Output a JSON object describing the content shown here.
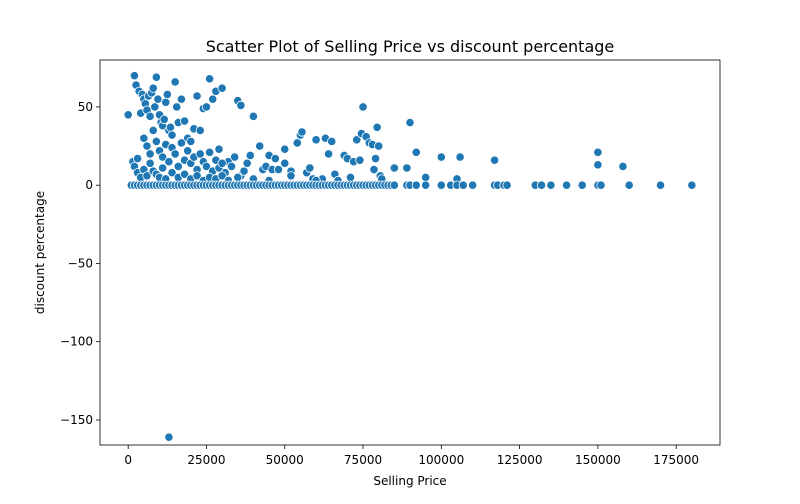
{
  "chart_data": {
    "type": "scatter",
    "title": "Scatter Plot of Selling Price vs discount percentage",
    "xlabel": "Selling Price",
    "ylabel": "discount percentage",
    "xlim": [
      -9000,
      189000
    ],
    "ylim": [
      -166,
      80
    ],
    "x_ticks": [
      0,
      25000,
      50000,
      75000,
      100000,
      125000,
      150000,
      175000
    ],
    "x_tick_labels": [
      "0",
      "25000",
      "50000",
      "75000",
      "100000",
      "125000",
      "150000",
      "175000"
    ],
    "y_ticks": [
      -150,
      -100,
      -50,
      0,
      50
    ],
    "y_tick_labels": [
      "−150",
      "−100",
      "−50",
      "0",
      "50"
    ],
    "grid": false,
    "marker_color": "#1f77b4",
    "points": [
      [
        0,
        45
      ],
      [
        1500,
        15
      ],
      [
        2000,
        70
      ],
      [
        2500,
        64
      ],
      [
        3000,
        17
      ],
      [
        3500,
        60
      ],
      [
        4000,
        46
      ],
      [
        4500,
        58
      ],
      [
        5000,
        55
      ],
      [
        5500,
        52
      ],
      [
        6000,
        48
      ],
      [
        6500,
        57
      ],
      [
        7000,
        44
      ],
      [
        7500,
        59
      ],
      [
        8000,
        62
      ],
      [
        8500,
        50
      ],
      [
        9000,
        69
      ],
      [
        9500,
        55
      ],
      [
        10000,
        45
      ],
      [
        10500,
        40
      ],
      [
        11000,
        38
      ],
      [
        11500,
        42
      ],
      [
        12000,
        53
      ],
      [
        12500,
        58
      ],
      [
        13000,
        35
      ],
      [
        13500,
        37
      ],
      [
        14000,
        32
      ],
      [
        15000,
        66
      ],
      [
        15500,
        50
      ],
      [
        16000,
        40
      ],
      [
        17000,
        55
      ],
      [
        18000,
        41
      ],
      [
        19000,
        30
      ],
      [
        20000,
        28
      ],
      [
        21000,
        36
      ],
      [
        22000,
        57
      ],
      [
        23000,
        35
      ],
      [
        24000,
        49
      ],
      [
        25000,
        50
      ],
      [
        26000,
        68
      ],
      [
        27000,
        55
      ],
      [
        28000,
        60
      ],
      [
        29000,
        23
      ],
      [
        30000,
        62
      ],
      [
        32000,
        15
      ],
      [
        34000,
        18
      ],
      [
        35000,
        54
      ],
      [
        36000,
        51
      ],
      [
        38000,
        14
      ],
      [
        39000,
        19
      ],
      [
        40000,
        44
      ],
      [
        42000,
        25
      ],
      [
        43000,
        10
      ],
      [
        44000,
        12
      ],
      [
        45000,
        19
      ],
      [
        46000,
        10
      ],
      [
        47000,
        17
      ],
      [
        48000,
        10
      ],
      [
        50000,
        23
      ],
      [
        50000,
        14
      ],
      [
        52000,
        9
      ],
      [
        54000,
        27
      ],
      [
        55000,
        32
      ],
      [
        55500,
        34
      ],
      [
        57000,
        8
      ],
      [
        58000,
        11
      ],
      [
        59000,
        4
      ],
      [
        60000,
        29
      ],
      [
        62000,
        4
      ],
      [
        63000,
        30
      ],
      [
        64000,
        20
      ],
      [
        65000,
        28
      ],
      [
        66000,
        7
      ],
      [
        67000,
        3
      ],
      [
        69000,
        19
      ],
      [
        70000,
        17
      ],
      [
        71000,
        5
      ],
      [
        72000,
        15
      ],
      [
        73000,
        29
      ],
      [
        74000,
        16
      ],
      [
        74500,
        33
      ],
      [
        75000,
        50
      ],
      [
        76000,
        31
      ],
      [
        77000,
        27
      ],
      [
        78000,
        26
      ],
      [
        78500,
        10
      ],
      [
        79000,
        17
      ],
      [
        79500,
        37
      ],
      [
        80000,
        25
      ],
      [
        80500,
        6
      ],
      [
        81000,
        4
      ],
      [
        85000,
        11
      ],
      [
        89000,
        11
      ],
      [
        90000,
        40
      ],
      [
        92000,
        21
      ],
      [
        95000,
        5
      ],
      [
        100000,
        18
      ],
      [
        105000,
        4
      ],
      [
        106000,
        18
      ],
      [
        117000,
        16
      ],
      [
        150000,
        21
      ],
      [
        150000,
        13
      ],
      [
        158000,
        12
      ],
      [
        13000,
        -161
      ],
      [
        5000,
        30
      ],
      [
        6000,
        25
      ],
      [
        7000,
        20
      ],
      [
        8000,
        35
      ],
      [
        9000,
        28
      ],
      [
        10000,
        22
      ],
      [
        11000,
        18
      ],
      [
        12000,
        26
      ],
      [
        13000,
        15
      ],
      [
        14000,
        24
      ],
      [
        15000,
        20
      ],
      [
        16000,
        12
      ],
      [
        17000,
        27
      ],
      [
        18000,
        16
      ],
      [
        19000,
        22
      ],
      [
        20000,
        14
      ],
      [
        21000,
        18
      ],
      [
        22000,
        10
      ],
      [
        23000,
        20
      ],
      [
        24000,
        15
      ],
      [
        25000,
        12
      ],
      [
        26000,
        21
      ],
      [
        27000,
        9
      ],
      [
        28000,
        16
      ],
      [
        29000,
        11
      ],
      [
        30000,
        14
      ],
      [
        31000,
        8
      ],
      [
        33000,
        12
      ],
      [
        36000,
        6
      ],
      [
        37000,
        9
      ],
      [
        2000,
        12
      ],
      [
        3000,
        8
      ],
      [
        4000,
        5
      ],
      [
        5000,
        10
      ],
      [
        6000,
        6
      ],
      [
        7000,
        14
      ],
      [
        8000,
        9
      ],
      [
        9000,
        7
      ],
      [
        10000,
        5
      ],
      [
        11000,
        11
      ],
      [
        12000,
        4
      ],
      [
        14000,
        8
      ],
      [
        16000,
        5
      ],
      [
        18000,
        7
      ],
      [
        20000,
        4
      ],
      [
        22000,
        6
      ],
      [
        24000,
        3
      ],
      [
        26000,
        5
      ],
      [
        28000,
        4
      ],
      [
        30000,
        6
      ],
      [
        32000,
        3
      ],
      [
        35000,
        5
      ],
      [
        40000,
        4
      ],
      [
        45000,
        3
      ],
      [
        52000,
        6
      ],
      [
        60000,
        3
      ],
      [
        1000,
        0
      ],
      [
        2000,
        0
      ],
      [
        3000,
        0
      ],
      [
        4000,
        0
      ],
      [
        5000,
        0
      ],
      [
        6000,
        0
      ],
      [
        7000,
        0
      ],
      [
        8000,
        0
      ],
      [
        9000,
        0
      ],
      [
        10000,
        0
      ],
      [
        11000,
        0
      ],
      [
        12000,
        0
      ],
      [
        13000,
        0
      ],
      [
        14000,
        0
      ],
      [
        15000,
        0
      ],
      [
        16000,
        0
      ],
      [
        17000,
        0
      ],
      [
        18000,
        0
      ],
      [
        19000,
        0
      ],
      [
        20000,
        0
      ],
      [
        21000,
        0
      ],
      [
        22000,
        0
      ],
      [
        23000,
        0
      ],
      [
        24000,
        0
      ],
      [
        25000,
        0
      ],
      [
        26000,
        0
      ],
      [
        27000,
        0
      ],
      [
        28000,
        0
      ],
      [
        29000,
        0
      ],
      [
        30000,
        0
      ],
      [
        31000,
        0
      ],
      [
        32000,
        0
      ],
      [
        33000,
        0
      ],
      [
        34000,
        0
      ],
      [
        35000,
        0
      ],
      [
        36000,
        0
      ],
      [
        37000,
        0
      ],
      [
        38000,
        0
      ],
      [
        39000,
        0
      ],
      [
        40000,
        0
      ],
      [
        41000,
        0
      ],
      [
        42000,
        0
      ],
      [
        43000,
        0
      ],
      [
        44000,
        0
      ],
      [
        45000,
        0
      ],
      [
        46000,
        0
      ],
      [
        47000,
        0
      ],
      [
        48000,
        0
      ],
      [
        49000,
        0
      ],
      [
        50000,
        0
      ],
      [
        51000,
        0
      ],
      [
        52000,
        0
      ],
      [
        53000,
        0
      ],
      [
        54000,
        0
      ],
      [
        55000,
        0
      ],
      [
        56000,
        0
      ],
      [
        57000,
        0
      ],
      [
        58000,
        0
      ],
      [
        59000,
        0
      ],
      [
        60000,
        0
      ],
      [
        61000,
        0
      ],
      [
        62000,
        0
      ],
      [
        63000,
        0
      ],
      [
        64000,
        0
      ],
      [
        65000,
        0
      ],
      [
        66000,
        0
      ],
      [
        67000,
        0
      ],
      [
        68000,
        0
      ],
      [
        69000,
        0
      ],
      [
        70000,
        0
      ],
      [
        71000,
        0
      ],
      [
        72000,
        0
      ],
      [
        73000,
        0
      ],
      [
        74000,
        0
      ],
      [
        75000,
        0
      ],
      [
        76000,
        0
      ],
      [
        77000,
        0
      ],
      [
        78000,
        0
      ],
      [
        79000,
        0
      ],
      [
        80000,
        0
      ],
      [
        81000,
        0
      ],
      [
        82000,
        0
      ],
      [
        83000,
        0
      ],
      [
        84000,
        0
      ],
      [
        85000,
        0
      ],
      [
        89000,
        0
      ],
      [
        90000,
        0
      ],
      [
        92000,
        0
      ],
      [
        95000,
        0
      ],
      [
        100000,
        0
      ],
      [
        103000,
        0
      ],
      [
        105000,
        0
      ],
      [
        107000,
        0
      ],
      [
        110000,
        0
      ],
      [
        117000,
        0
      ],
      [
        118000,
        0
      ],
      [
        120000,
        0
      ],
      [
        121000,
        0
      ],
      [
        130000,
        0
      ],
      [
        132000,
        0
      ],
      [
        135000,
        0
      ],
      [
        140000,
        0
      ],
      [
        145000,
        0
      ],
      [
        150000,
        0
      ],
      [
        151000,
        0
      ],
      [
        160000,
        0
      ],
      [
        170000,
        0
      ],
      [
        180000,
        0
      ]
    ]
  }
}
